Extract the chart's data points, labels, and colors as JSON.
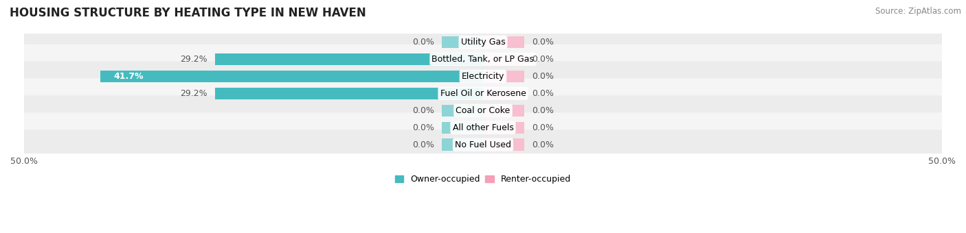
{
  "title": "HOUSING STRUCTURE BY HEATING TYPE IN NEW HAVEN",
  "source": "Source: ZipAtlas.com",
  "categories": [
    "Utility Gas",
    "Bottled, Tank, or LP Gas",
    "Electricity",
    "Fuel Oil or Kerosene",
    "Coal or Coke",
    "All other Fuels",
    "No Fuel Used"
  ],
  "owner_values": [
    0.0,
    29.2,
    41.7,
    29.2,
    0.0,
    0.0,
    0.0
  ],
  "renter_values": [
    0.0,
    0.0,
    0.0,
    0.0,
    0.0,
    0.0,
    0.0
  ],
  "owner_color": "#45BBBF",
  "renter_color": "#F4A0B8",
  "owner_color_zero": "#8DD4D6",
  "renter_color_zero": "#F7BFCF",
  "axis_limit": 50.0,
  "zero_stub": 4.5,
  "title_fontsize": 12,
  "source_fontsize": 8.5,
  "label_fontsize": 9,
  "category_fontsize": 9,
  "legend_fontsize": 9,
  "legend_owner": "Owner-occupied",
  "legend_renter": "Renter-occupied",
  "row_colors": [
    "#ECECEC",
    "#F5F5F5",
    "#ECECEC",
    "#F5F5F5",
    "#ECECEC",
    "#F5F5F5",
    "#ECECEC"
  ]
}
